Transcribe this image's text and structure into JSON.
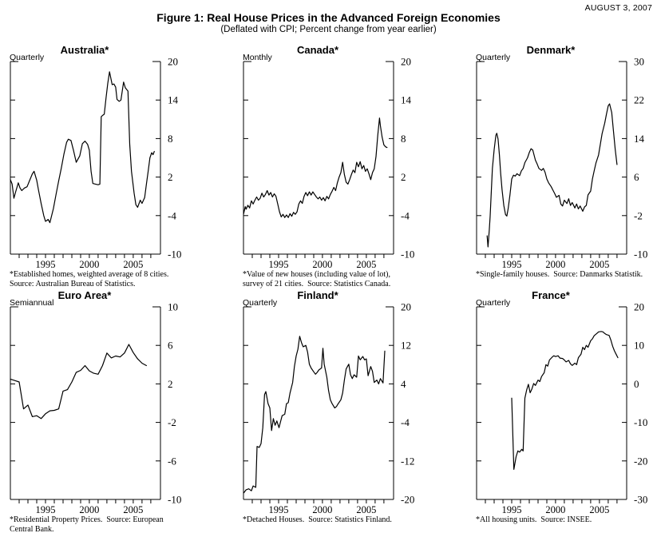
{
  "header": {
    "date": "AUGUST 3, 2007",
    "title": "Figure 1: Real House Prices in the Advanced Foreign Economies",
    "subtitle": "(Deflated with CPI; Percent change from year earlier)"
  },
  "chart_data": [
    {
      "type": "line",
      "title": "Australia*",
      "frequency": "Quarterly",
      "footnote": "*Established homes, weighted average of 8 cities.\nSource: Australian Bureau of Statistics.",
      "ylim": [
        -10,
        20
      ],
      "yticks": [
        20,
        14,
        8,
        2,
        -4,
        -10
      ],
      "xlim": [
        1991,
        2008.1
      ],
      "xticks": [
        1992,
        1993,
        1994,
        1995,
        1996,
        1997,
        1998,
        1999,
        2000,
        2001,
        2002,
        2003,
        2004,
        2005,
        2006,
        2007
      ],
      "xlabels": [
        1995,
        2000,
        2005
      ],
      "x": [
        1991.0,
        1991.2,
        1991.4,
        1991.6,
        1991.9,
        1992.1,
        1992.3,
        1992.6,
        1992.9,
        1993.2,
        1993.5,
        1993.7,
        1994.0,
        1994.2,
        1994.5,
        1994.8,
        1995.0,
        1995.3,
        1995.5,
        1995.9,
        1996.2,
        1996.5,
        1996.8,
        1997.1,
        1997.4,
        1997.6,
        1997.9,
        1998.2,
        1998.5,
        1998.9,
        1999.2,
        1999.5,
        1999.8,
        2000.0,
        2000.2,
        2000.4,
        2000.7,
        2001.0,
        2001.2,
        2001.35,
        2001.5,
        2001.7,
        2001.9,
        2002.1,
        2002.3,
        2002.6,
        2002.8,
        2003.0,
        2003.15,
        2003.4,
        2003.6,
        2003.9,
        2004.1,
        2004.4,
        2004.6,
        2004.8,
        2005.1,
        2005.3,
        2005.5,
        2005.8,
        2006.0,
        2006.3,
        2006.5,
        2006.7,
        2006.9,
        2007.1,
        2007.25,
        2007.4
      ],
      "y": [
        1.6,
        0.9,
        -1.3,
        -0.3,
        1.1,
        0.3,
        -0.1,
        0.3,
        0.5,
        1.5,
        2.5,
        2.9,
        1.5,
        0.0,
        -2.1,
        -4.0,
        -4.9,
        -4.6,
        -5.1,
        -2.9,
        -0.7,
        1.4,
        3.4,
        5.6,
        7.4,
        7.9,
        7.7,
        6.1,
        4.3,
        5.3,
        7.2,
        7.6,
        7.1,
        6.2,
        2.9,
        1.0,
        0.9,
        0.8,
        0.9,
        11.4,
        11.6,
        11.8,
        14.3,
        16.6,
        18.4,
        16.4,
        16.5,
        16.0,
        14.1,
        13.8,
        14.0,
        16.8,
        15.9,
        15.4,
        7.1,
        2.9,
        -0.5,
        -2.3,
        -2.7,
        -1.6,
        -2.1,
        -1.2,
        0.9,
        2.9,
        5.0,
        5.8,
        5.5,
        6.0
      ]
    },
    {
      "type": "line",
      "title": "Canada*",
      "frequency": "Monthly",
      "footnote": "*Value of new houses (including value of lot),\nsurvey of 21 cities.  Source: Statistics Canada.",
      "ylim": [
        -10,
        20
      ],
      "yticks": [
        20,
        14,
        8,
        2,
        -4,
        -10
      ],
      "xlim": [
        1991,
        2008.1
      ],
      "xticks": [
        1992,
        1993,
        1994,
        1995,
        1996,
        1997,
        1998,
        1999,
        2000,
        2001,
        2002,
        2003,
        2004,
        2005,
        2006,
        2007
      ],
      "xlabels": [
        1995,
        2000,
        2005
      ],
      "x": [
        1991.0,
        1991.2,
        1991.3,
        1991.5,
        1991.7,
        1991.9,
        1992.1,
        1992.3,
        1992.5,
        1992.7,
        1992.9,
        1993.1,
        1993.3,
        1993.5,
        1993.7,
        1993.9,
        1994.1,
        1994.3,
        1994.5,
        1994.7,
        1994.9,
        1995.1,
        1995.3,
        1995.5,
        1995.7,
        1995.9,
        1996.1,
        1996.3,
        1996.5,
        1996.7,
        1996.9,
        1997.1,
        1997.3,
        1997.5,
        1997.7,
        1997.9,
        1998.1,
        1998.3,
        1998.5,
        1998.7,
        1998.9,
        1999.1,
        1999.3,
        1999.5,
        1999.7,
        1999.9,
        2000.1,
        2000.3,
        2000.5,
        2000.7,
        2000.9,
        2001.1,
        2001.3,
        2001.5,
        2001.7,
        2001.9,
        2002.1,
        2002.3,
        2002.5,
        2002.7,
        2002.9,
        2003.1,
        2003.3,
        2003.5,
        2003.7,
        2003.9,
        2004.1,
        2004.3,
        2004.5,
        2004.7,
        2004.9,
        2005.1,
        2005.3,
        2005.5,
        2005.7,
        2005.9,
        2006.1,
        2006.3,
        2006.5,
        2006.6,
        2006.8,
        2007.0,
        2007.2,
        2007.35
      ],
      "y": [
        -3.8,
        -2.6,
        -3.0,
        -2.4,
        -2.8,
        -1.7,
        -2.2,
        -1.6,
        -1.1,
        -1.6,
        -1.3,
        -0.5,
        -1.1,
        -0.7,
        -0.1,
        -0.8,
        -0.4,
        -1.1,
        -0.6,
        -1.0,
        -2.2,
        -3.4,
        -4.2,
        -3.8,
        -4.3,
        -3.9,
        -4.3,
        -3.7,
        -4.1,
        -3.5,
        -3.8,
        -3.4,
        -2.2,
        -1.7,
        -2.1,
        -1.0,
        -0.4,
        -0.9,
        -0.3,
        -0.8,
        -0.3,
        -0.7,
        -1.1,
        -1.4,
        -1.1,
        -1.6,
        -1.2,
        -1.7,
        -1.0,
        -1.4,
        -0.7,
        -0.2,
        0.4,
        -0.1,
        1.1,
        2.0,
        2.7,
        4.3,
        2.4,
        1.2,
        0.9,
        1.6,
        2.4,
        3.1,
        2.7,
        4.3,
        3.6,
        4.4,
        3.3,
        3.8,
        2.9,
        3.3,
        2.5,
        1.6,
        2.7,
        3.3,
        5.2,
        8.5,
        11.2,
        10.0,
        8.2,
        7.0,
        6.7,
        6.6
      ]
    },
    {
      "type": "line",
      "title": "Denmark*",
      "frequency": "Quarterly",
      "footnote": "*Single-family houses.  Source: Danmarks Statistik.",
      "ylim": [
        -10,
        30
      ],
      "yticks": [
        30,
        22,
        14,
        6,
        -2,
        -10
      ],
      "xlim": [
        1991,
        2008.1
      ],
      "xticks": [
        1992,
        1993,
        1994,
        1995,
        1996,
        1997,
        1998,
        1999,
        2000,
        2001,
        2002,
        2003,
        2004,
        2005,
        2006,
        2007
      ],
      "xlabels": [
        1995,
        2000,
        2005
      ],
      "x": [
        1992.2,
        1992.3,
        1992.45,
        1992.55,
        1992.65,
        1992.8,
        1993.0,
        1993.2,
        1993.3,
        1993.45,
        1993.6,
        1993.75,
        1993.9,
        1994.1,
        1994.3,
        1994.45,
        1994.6,
        1994.8,
        1995.0,
        1995.2,
        1995.4,
        1995.6,
        1995.9,
        1996.1,
        1996.3,
        1996.5,
        1996.8,
        1997.0,
        1997.2,
        1997.4,
        1997.7,
        1997.9,
        1998.1,
        1998.4,
        1998.6,
        1998.8,
        1999.0,
        1999.2,
        1999.5,
        1999.7,
        1999.9,
        2000.1,
        2000.4,
        2000.6,
        2000.8,
        2001.0,
        2001.3,
        2001.5,
        2001.7,
        2001.9,
        2002.2,
        2002.4,
        2002.6,
        2002.8,
        2003.1,
        2003.3,
        2003.5,
        2003.7,
        2004.0,
        2004.2,
        2004.4,
        2004.6,
        2004.9,
        2005.1,
        2005.3,
        2005.6,
        2005.8,
        2006.0,
        2006.15,
        2006.4,
        2006.6,
        2006.8,
        2007.0
      ],
      "y": [
        -6.2,
        -8.5,
        -5.0,
        -2.1,
        1.8,
        7.8,
        11.7,
        14.7,
        15.1,
        13.9,
        10.6,
        6.7,
        3.4,
        0.1,
        -1.8,
        -2.1,
        -0.5,
        2.3,
        5.6,
        6.4,
        6.2,
        6.7,
        6.3,
        7.3,
        7.8,
        9.0,
        10.0,
        11.1,
        11.9,
        11.6,
        9.5,
        8.7,
        7.8,
        7.4,
        7.8,
        7.0,
        5.6,
        4.8,
        4.0,
        3.3,
        2.6,
        1.8,
        2.2,
        0.4,
        0.0,
        1.2,
        0.5,
        1.5,
        0.1,
        0.7,
        -0.4,
        0.4,
        -0.6,
        0.0,
        -1.1,
        -0.2,
        0.1,
        2.3,
        3.1,
        5.6,
        7.3,
        8.9,
        10.6,
        12.8,
        15.0,
        17.2,
        19.1,
        20.8,
        21.2,
        19.4,
        15.5,
        11.7,
        8.6
      ]
    },
    {
      "type": "line",
      "title": "Euro Area*",
      "frequency": "Semiannual",
      "footnote": "*Residential Property Prices.  Source: European\nCentral Bank.",
      "ylim": [
        -10,
        10
      ],
      "yticks": [
        10,
        6,
        2,
        -2,
        -6,
        -10
      ],
      "xlim": [
        1991,
        2008.1
      ],
      "xticks": [
        1992,
        1993,
        1994,
        1995,
        1996,
        1997,
        1998,
        1999,
        2000,
        2001,
        2002,
        2003,
        2004,
        2005,
        2006,
        2007
      ],
      "xlabels": [
        1995,
        2000,
        2005
      ],
      "x": [
        1991.0,
        1991.5,
        1992.0,
        1992.5,
        1993.0,
        1993.5,
        1994.0,
        1994.5,
        1995.0,
        1995.5,
        1996.0,
        1996.5,
        1997.0,
        1997.5,
        1998.0,
        1998.5,
        1999.0,
        1999.5,
        2000.0,
        2000.5,
        2001.0,
        2001.5,
        2002.0,
        2002.5,
        2003.0,
        2003.5,
        2004.0,
        2004.5,
        2005.0,
        2005.5,
        2006.0,
        2006.5
      ],
      "y": [
        2.5,
        2.35,
        2.2,
        -0.6,
        -0.2,
        -1.4,
        -1.3,
        -1.6,
        -1.1,
        -0.8,
        -0.75,
        -0.6,
        1.25,
        1.4,
        2.2,
        3.2,
        3.4,
        3.9,
        3.35,
        3.1,
        3.0,
        3.9,
        5.2,
        4.7,
        4.9,
        4.8,
        5.2,
        6.1,
        5.25,
        4.6,
        4.15,
        3.9
      ]
    },
    {
      "type": "line",
      "title": "Finland*",
      "frequency": "Quarterly",
      "footnote": "*Detached Houses.  Source: Statistics Finland.",
      "ylim": [
        -20,
        20
      ],
      "yticks": [
        20,
        12,
        4,
        -4,
        -12,
        -20
      ],
      "xlim": [
        1991,
        2008.1
      ],
      "xticks": [
        1992,
        1993,
        1994,
        1995,
        1996,
        1997,
        1998,
        1999,
        2000,
        2001,
        2002,
        2003,
        2004,
        2005,
        2006,
        2007
      ],
      "xlabels": [
        1995,
        2000,
        2005
      ],
      "x": [
        1991.05,
        1991.3,
        1991.6,
        1991.9,
        1992.1,
        1992.4,
        1992.55,
        1992.8,
        1993.0,
        1993.2,
        1993.4,
        1993.55,
        1993.8,
        1994.0,
        1994.2,
        1994.4,
        1994.6,
        1994.8,
        1995.05,
        1995.2,
        1995.4,
        1995.7,
        1995.9,
        1996.1,
        1996.3,
        1996.6,
        1996.8,
        1997.0,
        1997.2,
        1997.4,
        1997.6,
        1997.8,
        1998.1,
        1998.3,
        1998.5,
        1998.7,
        1999.0,
        1999.2,
        1999.4,
        1999.6,
        1999.9,
        2000.05,
        2000.2,
        2000.5,
        2000.7,
        2000.9,
        2001.1,
        2001.4,
        2001.6,
        2001.8,
        2002.1,
        2002.3,
        2002.5,
        2002.7,
        2003.0,
        2003.2,
        2003.4,
        2003.6,
        2003.9,
        2004.1,
        2004.3,
        2004.6,
        2004.8,
        2005.0,
        2005.2,
        2005.5,
        2005.7,
        2005.9,
        2006.2,
        2006.4,
        2006.6,
        2006.9,
        2007.1
      ],
      "y": [
        -18.6,
        -18.0,
        -17.8,
        -18.2,
        -17.2,
        -17.5,
        -9.0,
        -9.2,
        -8.4,
        -5.1,
        1.8,
        2.4,
        -0.1,
        -1.0,
        -5.7,
        -3.2,
        -4.6,
        -3.7,
        -5.1,
        -4.0,
        -2.6,
        -2.3,
        -0.1,
        0.1,
        2.1,
        4.3,
        7.6,
        9.8,
        11.2,
        13.9,
        12.6,
        11.7,
        12.0,
        10.6,
        8.1,
        7.3,
        6.5,
        6.0,
        6.4,
        6.9,
        7.3,
        11.4,
        8.1,
        5.4,
        2.6,
        0.7,
        -0.1,
        -1.0,
        -0.7,
        -0.1,
        0.7,
        2.1,
        4.8,
        7.1,
        8.1,
        5.9,
        5.1,
        5.9,
        5.4,
        9.8,
        9.0,
        9.7,
        9.0,
        9.2,
        5.7,
        7.6,
        6.6,
        4.3,
        4.8,
        4.0,
        5.1,
        4.2,
        10.8
      ]
    },
    {
      "type": "line",
      "title": "France*",
      "frequency": "Quarterly",
      "footnote": "*All housing units.  Source: INSEE.",
      "ylim": [
        -30,
        20
      ],
      "yticks": [
        20,
        10,
        0,
        -10,
        -20,
        -30
      ],
      "xlim": [
        1991,
        2008.1
      ],
      "xticks": [
        1992,
        1993,
        1994,
        1995,
        1996,
        1997,
        1998,
        1999,
        2000,
        2001,
        2002,
        2003,
        2004,
        2005,
        2006,
        2007
      ],
      "xlabels": [
        1995,
        2000,
        2005
      ],
      "x": [
        1995.0,
        1995.25,
        1995.5,
        1995.7,
        1995.9,
        1996.15,
        1996.3,
        1996.5,
        1996.7,
        1996.9,
        1997.1,
        1997.3,
        1997.5,
        1997.7,
        1998.0,
        1998.2,
        1998.4,
        1998.7,
        1998.9,
        1999.1,
        1999.3,
        1999.6,
        1999.8,
        2000.0,
        2000.3,
        2000.5,
        2000.8,
        2001.0,
        2001.2,
        2001.5,
        2001.7,
        2001.9,
        2002.2,
        2002.4,
        2002.6,
        2002.9,
        2003.1,
        2003.3,
        2003.5,
        2003.7,
        2004.0,
        2004.2,
        2004.4,
        2004.7,
        2004.9,
        2005.2,
        2005.4,
        2005.6,
        2005.8,
        2006.1,
        2006.3,
        2006.5,
        2006.7,
        2006.9,
        2007.1
      ],
      "y": [
        -3.7,
        -22.2,
        -18.9,
        -17.4,
        -17.7,
        -17.0,
        -17.4,
        -3.7,
        -1.6,
        -0.1,
        -2.3,
        -1.3,
        0.1,
        -0.4,
        1.0,
        0.6,
        1.9,
        2.9,
        5.0,
        4.6,
        6.2,
        6.9,
        7.3,
        7.1,
        7.3,
        6.7,
        6.6,
        6.2,
        5.7,
        6.1,
        5.2,
        4.8,
        5.4,
        5.0,
        6.8,
        7.7,
        9.5,
        8.9,
        10.0,
        9.5,
        11.2,
        11.7,
        12.5,
        13.1,
        13.5,
        13.6,
        13.5,
        13.1,
        12.8,
        12.6,
        11.4,
        9.8,
        8.6,
        7.7,
        6.8
      ]
    }
  ]
}
